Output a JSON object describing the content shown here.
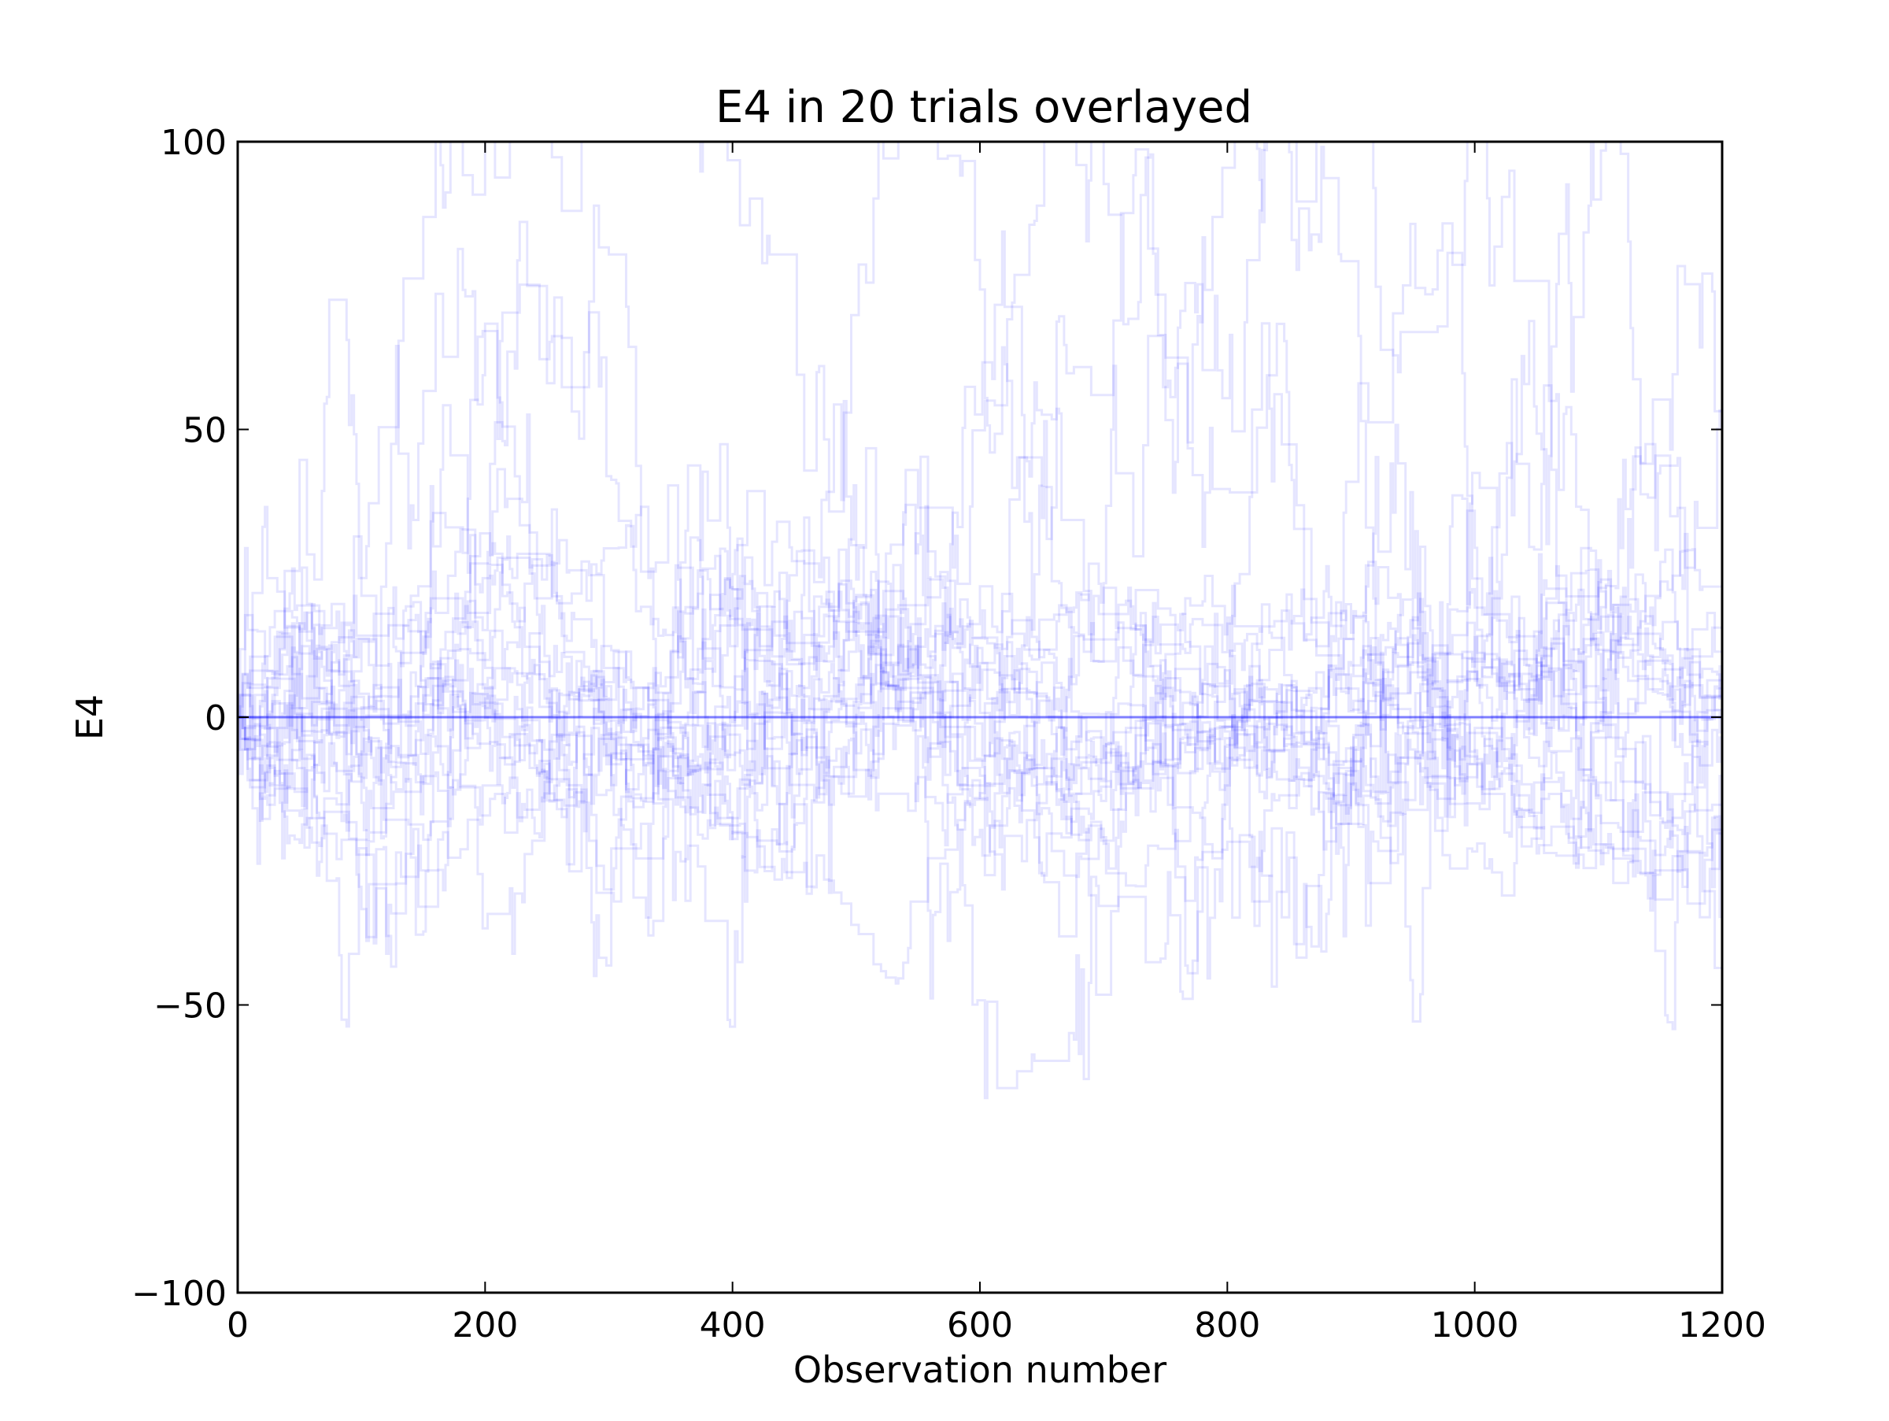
{
  "chart_data": {
    "type": "line",
    "title": "E4 in 20 trials overlayed",
    "xlabel": "Observation number",
    "ylabel": "E4",
    "xlim": [
      0,
      1200
    ],
    "ylim": [
      -100,
      100
    ],
    "xticks": [
      0,
      200,
      400,
      600,
      800,
      1000,
      1200
    ],
    "xtick_labels": [
      "0",
      "200",
      "400",
      "600",
      "800",
      "1000",
      "1200"
    ],
    "yticks": [
      -100,
      -50,
      0,
      50,
      100
    ],
    "ytick_labels": [
      "−100",
      "−50",
      "0",
      "50",
      "100"
    ],
    "series_count": 20,
    "series_color": "#0000ff",
    "series_opacity": 0.1,
    "drawstyle": "steps",
    "typical_range": [
      -30,
      30
    ],
    "grid": false,
    "legend": "none"
  }
}
